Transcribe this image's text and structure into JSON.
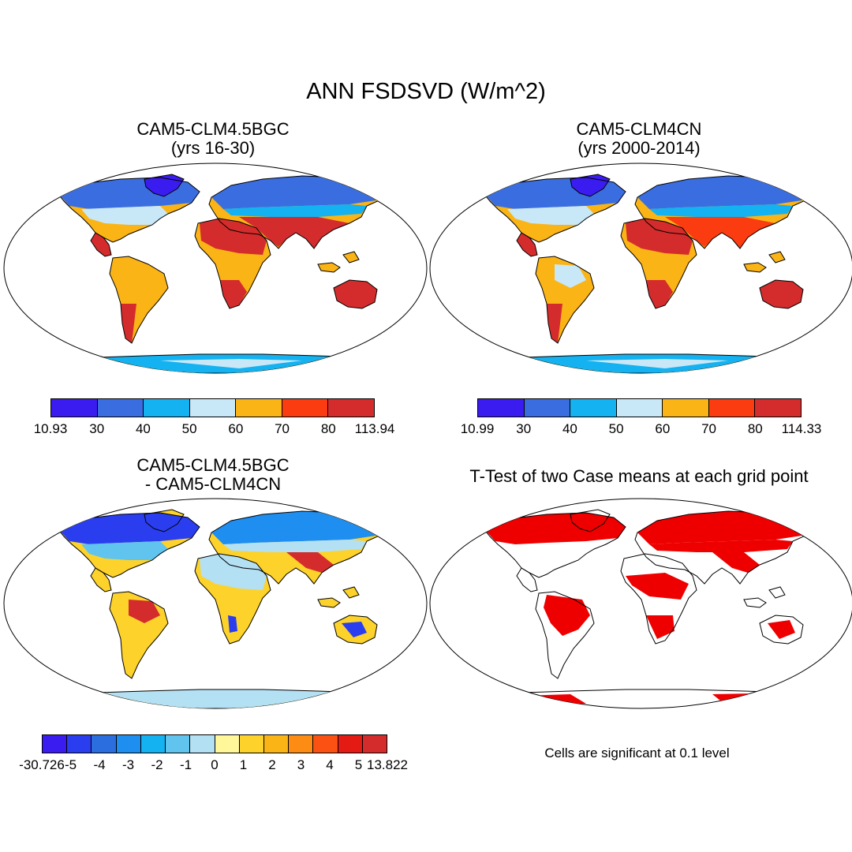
{
  "figure": {
    "title": "ANN FSDSVD (W/m^2)"
  },
  "panels": {
    "p1": {
      "title_line1": "CAM5-CLM4.5BGC",
      "title_line2": "(yrs 16-30)"
    },
    "p2": {
      "title_line1": "CAM5-CLM4CN",
      "title_line2": "(yrs 2000-2014)"
    },
    "p3": {
      "title_line1": "CAM5-CLM4.5BGC",
      "title_line2": "- CAM5-CLM4CN"
    },
    "p4": {
      "title_line1": "T-Test of two Case means at each grid point",
      "note": "Cells are significant at 0.1 level"
    }
  },
  "colorbars": {
    "cb1": {
      "colors": [
        "#3b1cf0",
        "#3a6ee0",
        "#14b2f0",
        "#c8e8f8",
        "#fbb415",
        "#fb3c10",
        "#d42c2c"
      ],
      "labels": [
        "10.93",
        "30",
        "40",
        "50",
        "60",
        "70",
        "80",
        "113.94"
      ]
    },
    "cb2": {
      "colors": [
        "#3b1cf0",
        "#3a6ee0",
        "#14b2f0",
        "#c8e8f8",
        "#fbb415",
        "#fb3c10",
        "#d42c2c"
      ],
      "labels": [
        "10.99",
        "30",
        "40",
        "50",
        "60",
        "70",
        "80",
        "114.33"
      ]
    },
    "cb3": {
      "colors": [
        "#3b1cf0",
        "#2a3ef0",
        "#2b6ee0",
        "#1e8ef0",
        "#14b2f0",
        "#60c4ef",
        "#b4e0f4",
        "#fff79a",
        "#fdd22a",
        "#fbb415",
        "#fc8c14",
        "#fb5214",
        "#e41a14",
        "#d42c2c"
      ],
      "labels": [
        "-30.726",
        "-5",
        "-4",
        "-3",
        "-2",
        "-1",
        "0",
        "1",
        "2",
        "3",
        "4",
        "5",
        "13.822"
      ]
    }
  },
  "map_colors": {
    "ocean": "#ffffff",
    "ttest_significant": "#ee0000"
  }
}
